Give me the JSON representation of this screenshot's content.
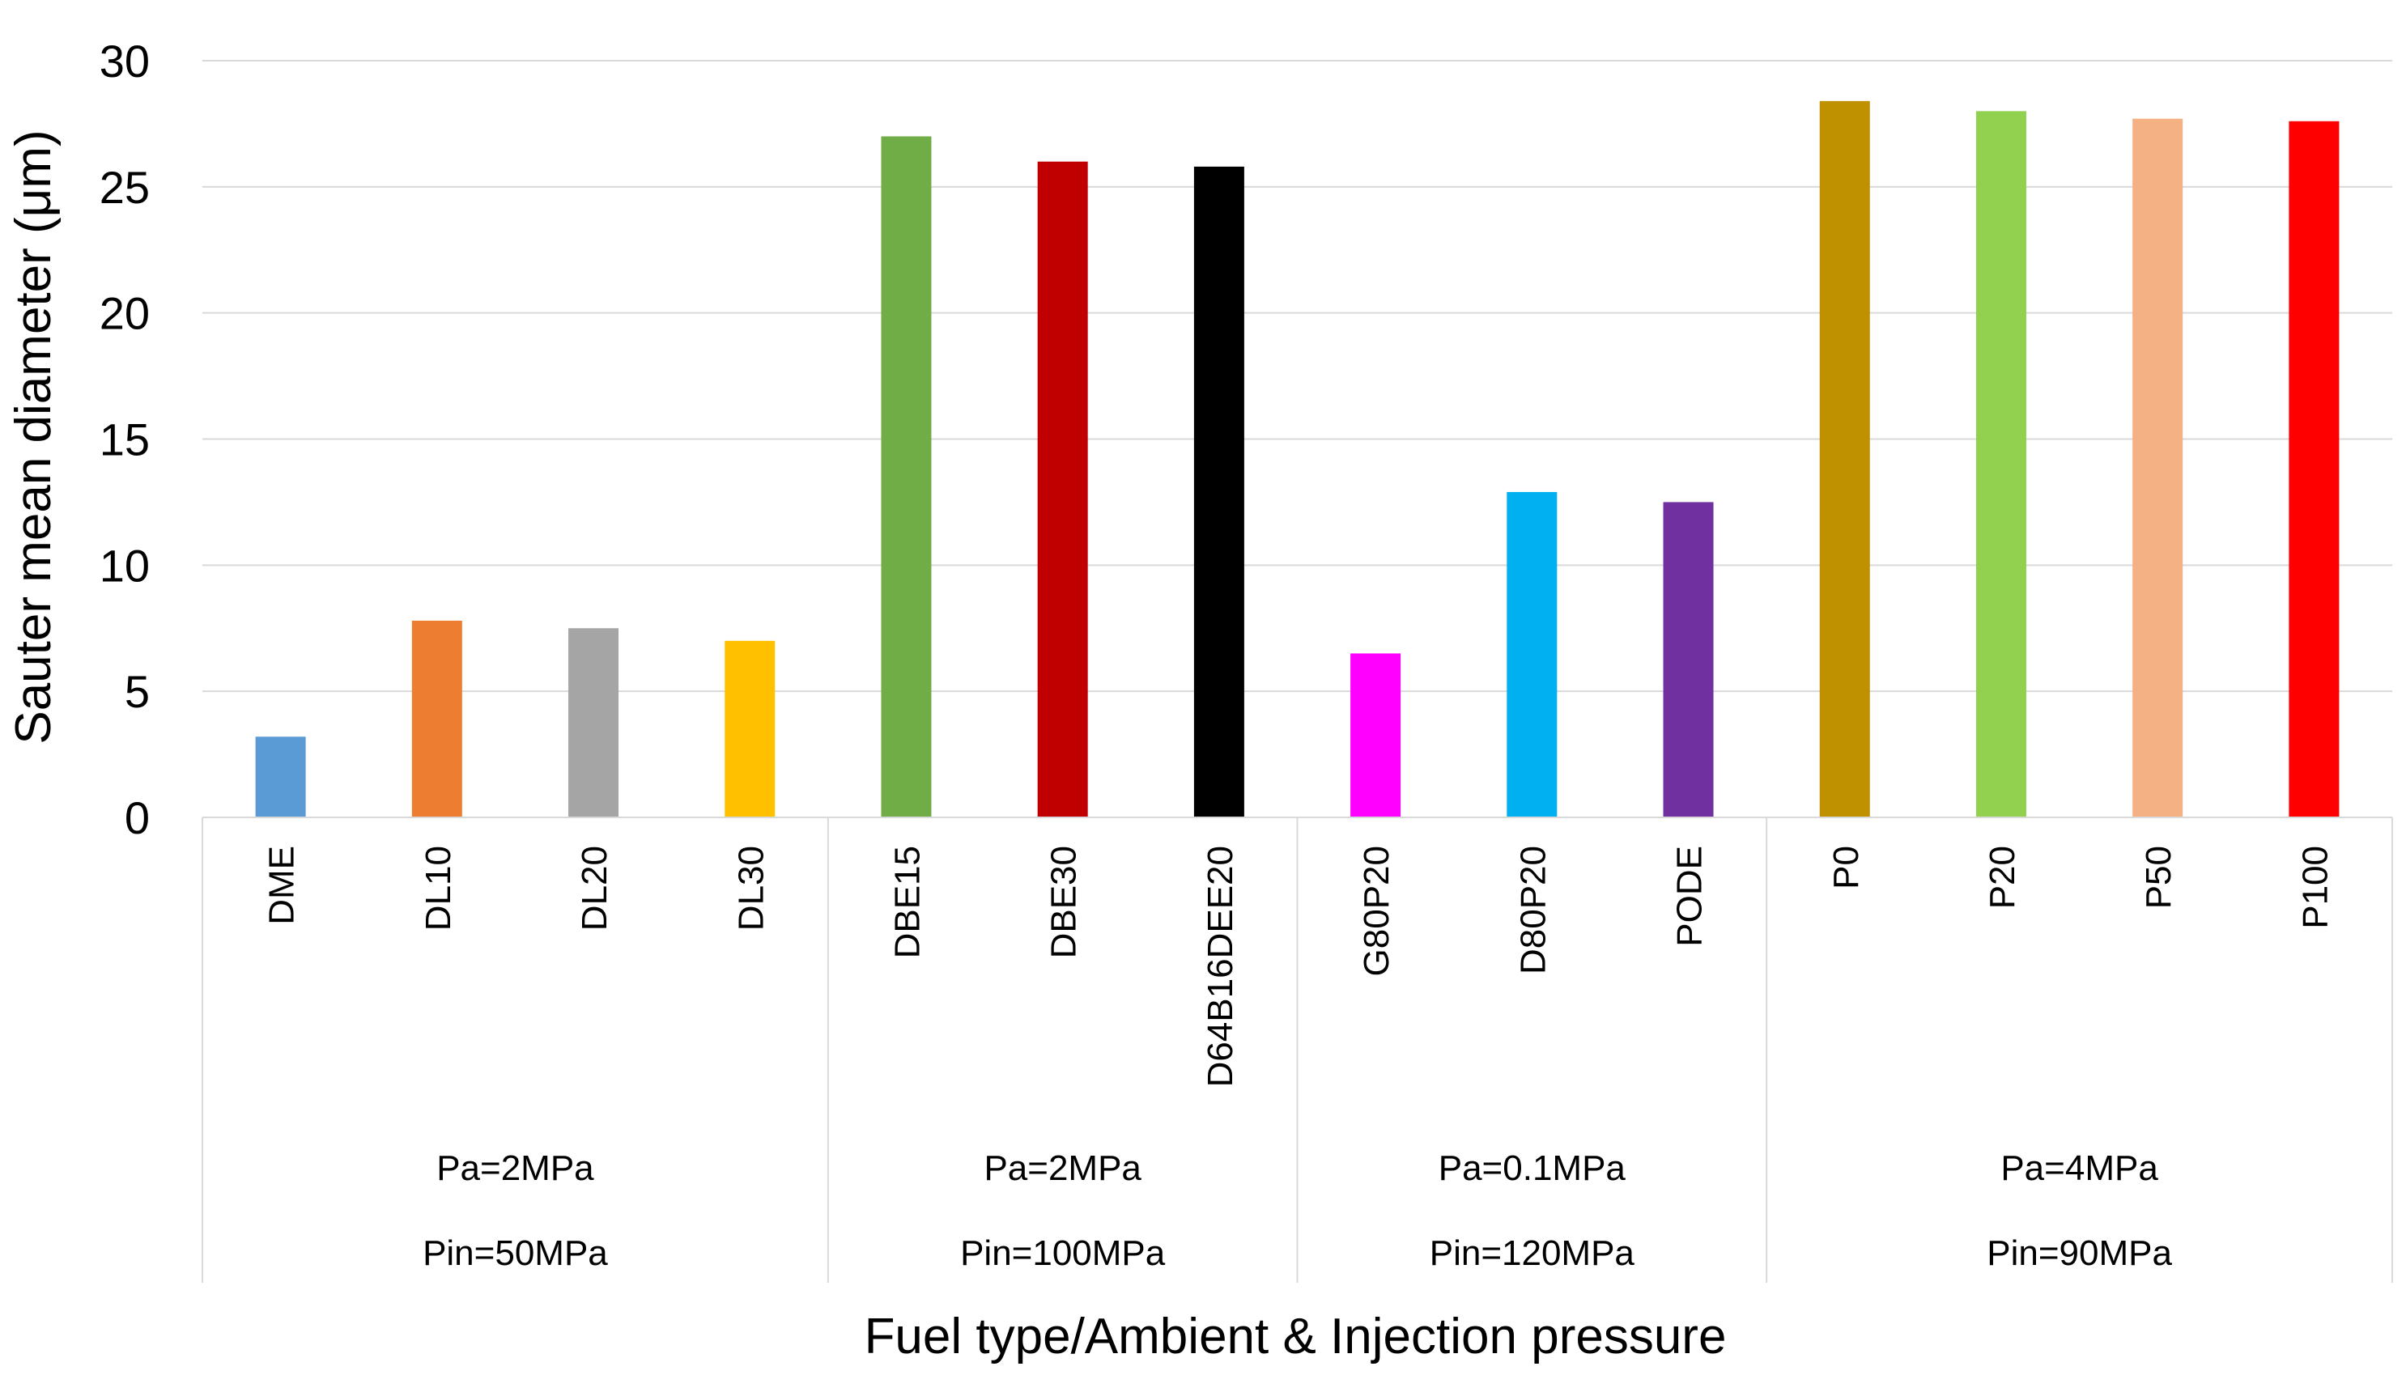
{
  "chart_data": {
    "type": "bar",
    "title": "",
    "xlabel": "Fuel type/Ambient & Injection pressure",
    "ylabel": "Sauter mean diameter (μm)",
    "ylim": [
      0,
      30
    ],
    "yticks": [
      0,
      5,
      10,
      15,
      20,
      25,
      30
    ],
    "grid": true,
    "categories": [
      "DME",
      "DL10",
      "DL20",
      "DL30",
      "DBE15",
      "DBE30",
      "D64B16DEE20",
      "G80P20",
      "D80P20",
      "PODE",
      "P0",
      "P20",
      "P50",
      "P100"
    ],
    "values": [
      3.2,
      7.8,
      7.5,
      7.0,
      27.0,
      26.0,
      25.8,
      6.5,
      12.9,
      12.5,
      28.4,
      28.0,
      27.7,
      27.6
    ],
    "colors": [
      "#5b9bd5",
      "#ed7d31",
      "#a5a5a5",
      "#ffc000",
      "#70ad47",
      "#c00000",
      "#000000",
      "#ff00ff",
      "#00b0f0",
      "#7030a0",
      "#bf9000",
      "#92d050",
      "#f4b183",
      "#ff0000"
    ],
    "groups": [
      {
        "line1": "Pa=2MPa",
        "line2": "Pin=50MPa",
        "count": 4
      },
      {
        "line1": "Pa=2MPa",
        "line2": "Pin=100MPa",
        "count": 3
      },
      {
        "line1": "Pa=0.1MPa",
        "line2": "Pin=120MPa",
        "count": 3
      },
      {
        "line1": "Pa=4MPa",
        "line2": "Pin=90MPa",
        "count": 4
      }
    ]
  }
}
